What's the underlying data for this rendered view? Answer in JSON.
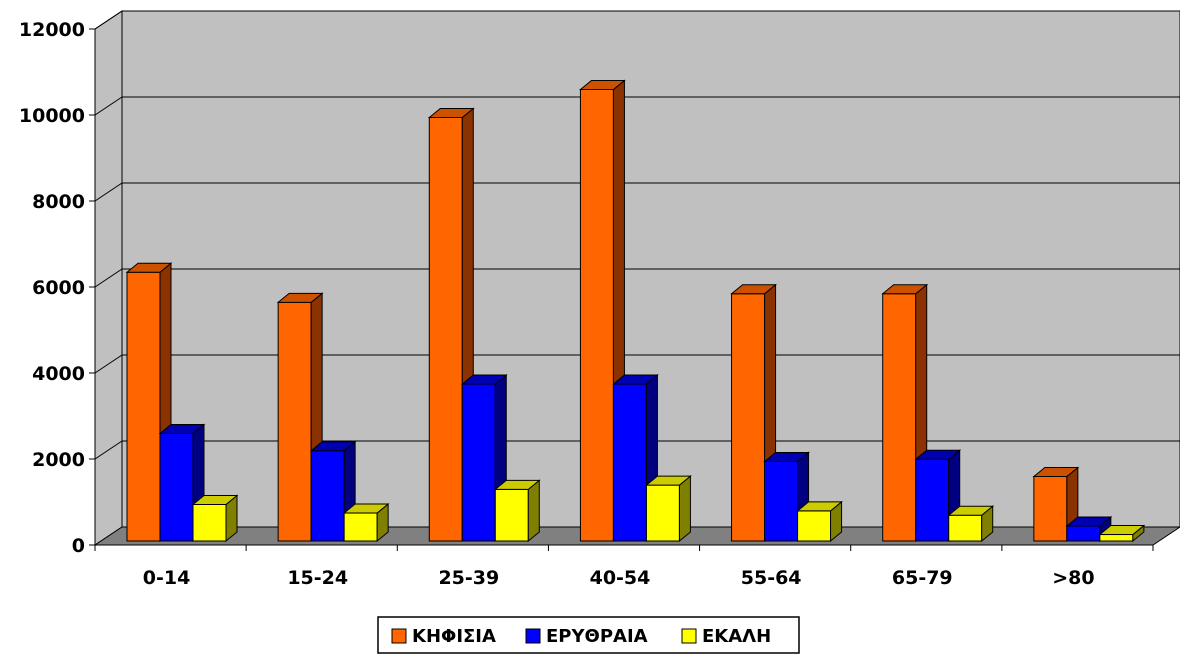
{
  "chart_data": {
    "type": "bar",
    "style": "3d-clustered-column",
    "categories": [
      "0-14",
      "15-24",
      "25-39",
      "40-54",
      "55-64",
      "65-79",
      ">80"
    ],
    "series": [
      {
        "name": "ΚΗΦΙΣΙΑ",
        "color": "#FF6600",
        "side_color": "#8B3300",
        "top_color": "#CC5200",
        "values": [
          6250,
          5550,
          9850,
          10500,
          5750,
          5750,
          1500
        ]
      },
      {
        "name": "ΕΡΥΘΡΑΙΑ",
        "color": "#0000FF",
        "side_color": "#000080",
        "top_color": "#0000B3",
        "values": [
          2500,
          2100,
          3650,
          3650,
          1850,
          1900,
          350
        ]
      },
      {
        "name": "ΕΚΑΛΗ",
        "color": "#FFFF00",
        "side_color": "#808000",
        "top_color": "#CCCC00",
        "values": [
          850,
          650,
          1200,
          1300,
          700,
          600,
          150
        ]
      }
    ],
    "yticks": [
      "0",
      "2000",
      "4000",
      "6000",
      "8000",
      "10000",
      "12000"
    ],
    "ylim": [
      0,
      12000
    ],
    "grid": true,
    "legend_position": "bottom-center",
    "title": "",
    "xlabel": "",
    "ylabel": "",
    "wall_color": "#C0C0C0",
    "floor_color": "#808080"
  }
}
